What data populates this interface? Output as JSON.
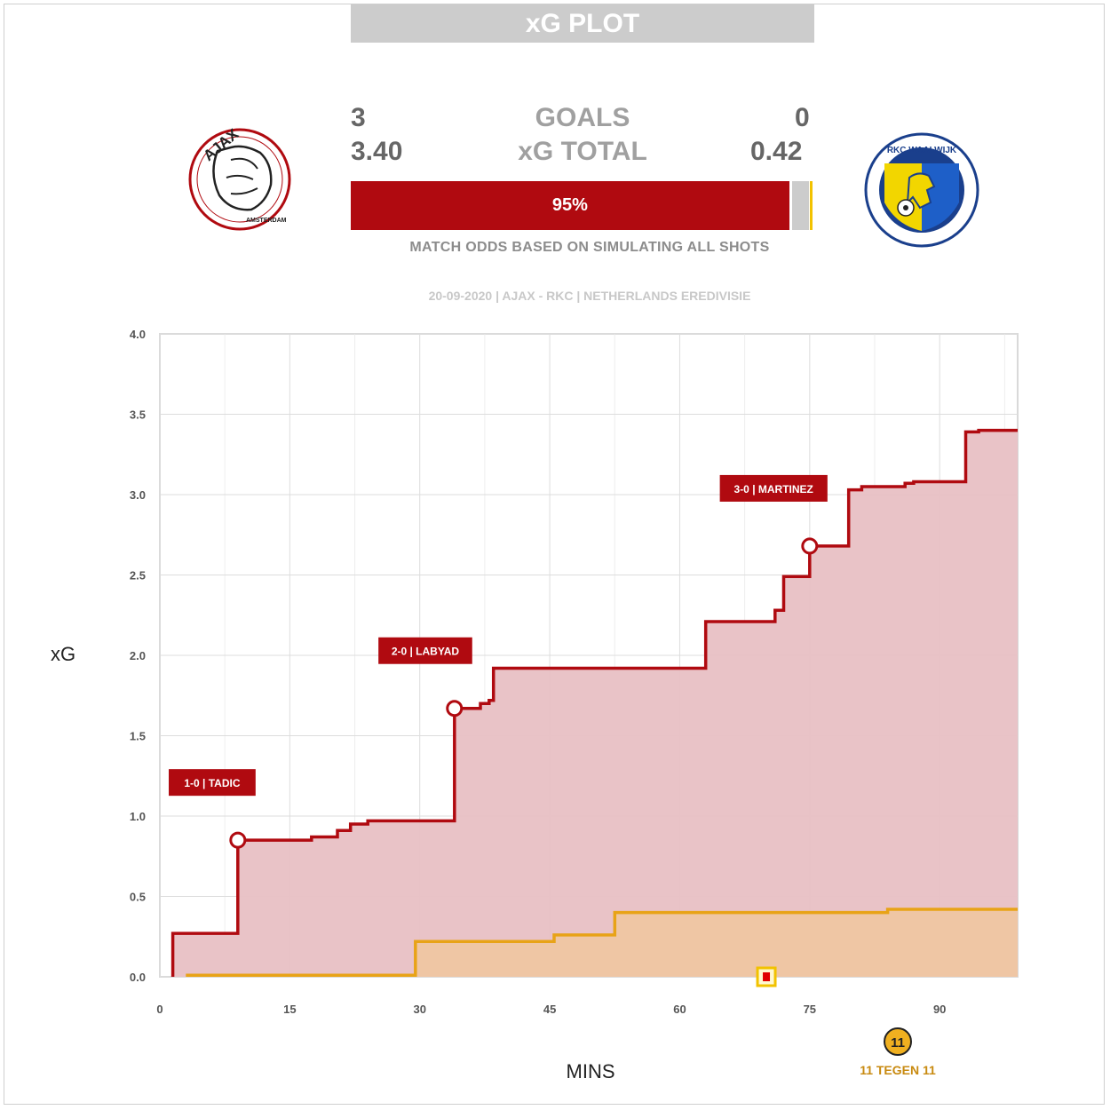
{
  "header": {
    "title": "xG PLOT"
  },
  "teams": {
    "home": {
      "name": "AJAX",
      "goals": "3",
      "xg_total": "3.40",
      "logo_text": "AJAX",
      "logo_subtext": "AMSTERDAM",
      "color": "#b00a10"
    },
    "away": {
      "name": "RKC WAALWIJK",
      "goals": "0",
      "xg_total": "0.42",
      "logo_text": "RKC WAALWIJK",
      "color": "#e8a317"
    }
  },
  "labels": {
    "goals": "GOALS",
    "xg_total": "xG TOTAL"
  },
  "odds": {
    "home_label": "95%",
    "home_pct": 95,
    "draw_pct": 4,
    "away_pct": 1,
    "note": "MATCH ODDS BASED ON SIMULATING ALL SHOTS"
  },
  "subtitle": "20-09-2020 | AJAX - RKC | NETHERLANDS EREDIVISIE",
  "brand": {
    "logo_text": "11 TEGEN 11",
    "badge": "11"
  },
  "chart_data": {
    "type": "line",
    "xlabel": "MINS",
    "ylabel": "xG",
    "xlim": [
      0,
      99
    ],
    "ylim": [
      0,
      4.0
    ],
    "x_ticks": [
      0,
      15,
      30,
      45,
      60,
      75,
      90
    ],
    "y_ticks": [
      "0.0",
      "0.5",
      "1.0",
      "1.5",
      "2.0",
      "2.5",
      "3.0",
      "3.5",
      "4.0"
    ],
    "grid": true,
    "series": [
      {
        "name": "AJAX",
        "color": "#b00a10",
        "fill": "#e8c0c4",
        "steps": [
          [
            1.5,
            0.0
          ],
          [
            1.5,
            0.27
          ],
          [
            9,
            0.27
          ],
          [
            9,
            0.85
          ],
          [
            17.5,
            0.85
          ],
          [
            17.5,
            0.87
          ],
          [
            20.5,
            0.87
          ],
          [
            20.5,
            0.91
          ],
          [
            22,
            0.91
          ],
          [
            22,
            0.95
          ],
          [
            24,
            0.95
          ],
          [
            24,
            0.97
          ],
          [
            34,
            0.97
          ],
          [
            34,
            1.67
          ],
          [
            37,
            1.67
          ],
          [
            37,
            1.7
          ],
          [
            38,
            1.7
          ],
          [
            38,
            1.72
          ],
          [
            38.5,
            1.72
          ],
          [
            38.5,
            1.92
          ],
          [
            63,
            1.92
          ],
          [
            63,
            2.21
          ],
          [
            71,
            2.21
          ],
          [
            71,
            2.28
          ],
          [
            72,
            2.28
          ],
          [
            72,
            2.49
          ],
          [
            75,
            2.49
          ],
          [
            75,
            2.68
          ],
          [
            79.5,
            2.68
          ],
          [
            79.5,
            3.03
          ],
          [
            81,
            3.03
          ],
          [
            81,
            3.05
          ],
          [
            86,
            3.05
          ],
          [
            86,
            3.07
          ],
          [
            87,
            3.07
          ],
          [
            87,
            3.08
          ],
          [
            93,
            3.08
          ],
          [
            93,
            3.39
          ],
          [
            94.5,
            3.39
          ],
          [
            94.5,
            3.4
          ],
          [
            99,
            3.4
          ]
        ]
      },
      {
        "name": "RKC WAALWIJK",
        "color": "#e8a317",
        "fill": "#efc7a0",
        "steps": [
          [
            3,
            0.01
          ],
          [
            29.5,
            0.01
          ],
          [
            29.5,
            0.22
          ],
          [
            45.5,
            0.22
          ],
          [
            45.5,
            0.26
          ],
          [
            52.5,
            0.26
          ],
          [
            52.5,
            0.4
          ],
          [
            84,
            0.4
          ],
          [
            84,
            0.42
          ],
          [
            99,
            0.42
          ]
        ]
      }
    ],
    "annotations": [
      {
        "label": "1-0 | TADIC",
        "x": 9,
        "y": 0.85
      },
      {
        "label": "2-0 | LABYAD",
        "x": 34,
        "y": 1.67
      },
      {
        "label": "3-0 | MARTINEZ",
        "x": 75,
        "y": 2.68
      }
    ],
    "events": [
      {
        "type": "red-card",
        "x": 70,
        "y": 0.0
      }
    ]
  }
}
